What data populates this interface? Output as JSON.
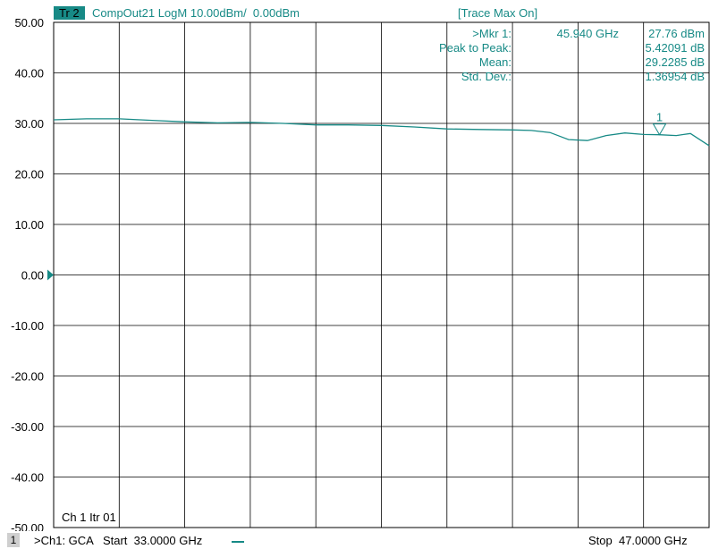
{
  "header": {
    "trace_badge": "Tr 2",
    "trace_info": "CompOut21 LogM 10.00dBm/  0.00dBm",
    "trace_mode": "[Trace Max On]"
  },
  "chart_data": {
    "type": "line",
    "title": "",
    "xlabel": "",
    "ylabel": "",
    "xlim": [
      33.0,
      47.0
    ],
    "ylim": [
      -50,
      50
    ],
    "y_ticks": [
      "50.00",
      "40.00",
      "30.00",
      "20.00",
      "10.00",
      "0.00",
      "-10.00",
      "-20.00",
      "-30.00",
      "-40.00",
      "-50.00"
    ],
    "grid": true,
    "x_divisions": 10,
    "reference_level": 0,
    "series": [
      {
        "x": [
          33.0,
          33.7,
          34.4,
          35.1,
          35.8,
          36.5,
          37.2,
          37.9,
          38.6,
          39.3,
          40.0,
          40.7,
          41.4,
          42.1,
          42.8,
          43.2,
          43.6,
          44.0,
          44.4,
          44.8,
          45.2,
          45.6,
          45.94,
          46.3,
          46.6,
          47.0
        ],
        "y": [
          30.7,
          30.9,
          30.9,
          30.6,
          30.3,
          30.1,
          30.2,
          30.0,
          29.7,
          29.7,
          29.6,
          29.3,
          28.9,
          28.8,
          28.7,
          28.6,
          28.2,
          26.8,
          26.6,
          27.6,
          28.1,
          27.8,
          27.76,
          27.6,
          28.0,
          25.6
        ]
      }
    ],
    "marker": {
      "label": "1",
      "x": 45.94,
      "y": 27.76
    },
    "marker_stats": [
      {
        "label": ">Mkr 1:",
        "value": "45.940 GHz",
        "extra": "27.76 dBm"
      },
      {
        "label": "Peak to Peak:",
        "value": "",
        "extra": "5.42091 dB"
      },
      {
        "label": "Mean:",
        "value": "",
        "extra": "29.2285 dB"
      },
      {
        "label": "Std. Dev.:",
        "value": "",
        "extra": "1.36954 dB"
      }
    ],
    "channel_label": "Ch 1  Itr 01"
  },
  "footer": {
    "channel_number": "1",
    "channel_info": ">Ch1: GCA   Start  33.0000 GHz",
    "stop_info": "Stop  47.0000 GHz"
  },
  "colors": {
    "trace": "#178a86",
    "grid": "#000000",
    "background": "#ffffff"
  }
}
